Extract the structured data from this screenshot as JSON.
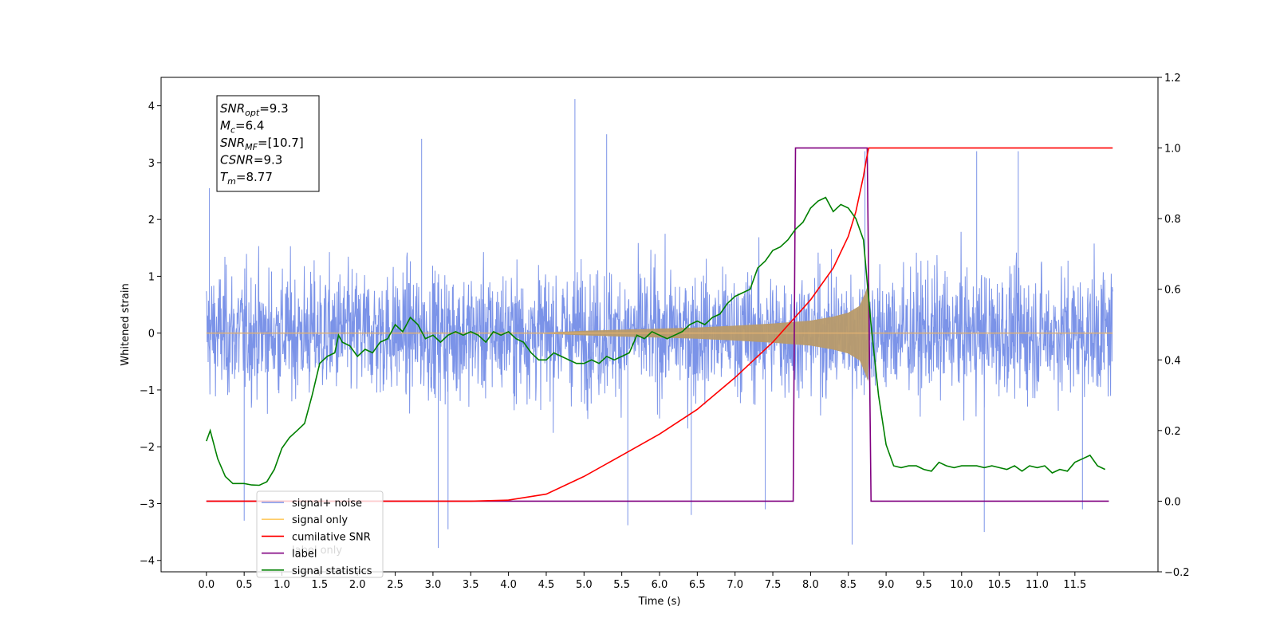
{
  "chart_data": {
    "type": "line",
    "xlabel": "Time (s)",
    "ylabel": "Whitened strain",
    "xlim": [
      -0.6,
      12.6
    ],
    "ylim_left": [
      -4.2,
      4.5
    ],
    "ylim_right": [
      -0.2,
      1.2
    ],
    "x_ticks": [
      0.0,
      0.5,
      1.0,
      1.5,
      2.0,
      2.5,
      3.0,
      3.5,
      4.0,
      4.5,
      5.0,
      5.5,
      6.0,
      6.5,
      7.0,
      7.5,
      8.0,
      8.5,
      9.0,
      9.5,
      10.0,
      10.5,
      11.0,
      11.5
    ],
    "x_tick_labels": [
      "0.0",
      "0.5",
      "1.0",
      "1.5",
      "2.0",
      "2.5",
      "3.0",
      "3.5",
      "4.0",
      "4.5",
      "5.0",
      "5.5",
      "6.0",
      "6.5",
      "7.0",
      "7.5",
      "8.0",
      "8.5",
      "9.0",
      "9.5",
      "10.0",
      "10.5",
      "11.0",
      "11.5"
    ],
    "y_left_ticks": [
      -4,
      -3,
      -2,
      -1,
      0,
      1,
      2,
      3,
      4
    ],
    "y_left_tick_labels": [
      "−4",
      "−3",
      "−2",
      "−1",
      "0",
      "1",
      "2",
      "3",
      "4"
    ],
    "y_right_ticks": [
      -0.2,
      0.0,
      0.2,
      0.4,
      0.6,
      0.8,
      1.0,
      1.2
    ],
    "y_right_tick_labels": [
      "−0.2",
      "0.0",
      "0.2",
      "0.4",
      "0.6",
      "0.8",
      "1.0",
      "1.2"
    ],
    "grid": false,
    "legend_position": "lower-left",
    "legend": [
      {
        "label": "signal+ noise",
        "color": "#7b93e8"
      },
      {
        "label": "signal only",
        "color": "#ffcc66"
      },
      {
        "label": "cumilative SNR",
        "color": "#ff0000"
      },
      {
        "label": "label",
        "color": "#800080"
      },
      {
        "label": "signal statistics",
        "color": "#008000"
      }
    ],
    "hidden_legend_text": "label only",
    "annotation": [
      {
        "main": "SNR",
        "sub": "opt",
        "rest": "=9.3"
      },
      {
        "main": "M",
        "sub": "c",
        "rest": "=6.4"
      },
      {
        "main": "SNR",
        "sub": "MF",
        "rest": "=[10.7]"
      },
      {
        "main": "CSNR",
        "sub": "",
        "rest": "=9.3"
      },
      {
        "main": "T",
        "sub": "m",
        "rest": "=8.77"
      }
    ],
    "series": [
      {
        "name": "signal+ noise",
        "axis": "left",
        "color": "#7b93e8",
        "style": "dense noise between about -2.5 and 2.5 whitened strain, occasional spikes up to 4.1 and down to -3.7",
        "t_range": [
          0.0,
          12.0
        ],
        "typical_amplitude": 1.9,
        "spikes": [
          [
            0.04,
            2.55
          ],
          [
            0.5,
            -3.3
          ],
          [
            2.85,
            3.42
          ],
          [
            3.07,
            -3.78
          ],
          [
            3.2,
            -3.45
          ],
          [
            4.88,
            4.12
          ],
          [
            5.3,
            3.5
          ],
          [
            5.58,
            -3.38
          ],
          [
            6.42,
            -3.2
          ],
          [
            7.4,
            -3.1
          ],
          [
            8.55,
            -3.72
          ],
          [
            8.72,
            3.2
          ],
          [
            10.2,
            3.2
          ],
          [
            10.3,
            -3.5
          ],
          [
            10.75,
            3.2
          ],
          [
            11.6,
            -3.1
          ]
        ]
      },
      {
        "name": "signal only",
        "axis": "left",
        "color": "#ffcc66",
        "style": "chirp envelope, flat before 4.3 s, growing to peak near 8.77 s then ending",
        "envelope": [
          [
            0.0,
            0.0
          ],
          [
            4.3,
            0.0
          ],
          [
            5.0,
            0.04
          ],
          [
            5.5,
            0.06
          ],
          [
            6.0,
            0.08
          ],
          [
            6.5,
            0.1
          ],
          [
            7.0,
            0.13
          ],
          [
            7.5,
            0.17
          ],
          [
            8.0,
            0.22
          ],
          [
            8.3,
            0.29
          ],
          [
            8.5,
            0.36
          ],
          [
            8.65,
            0.48
          ],
          [
            8.72,
            0.7
          ],
          [
            8.76,
            0.85
          ],
          [
            8.78,
            0.0
          ],
          [
            12.0,
            0.0
          ]
        ]
      },
      {
        "name": "cumilative SNR",
        "axis": "right",
        "color": "#ff0000",
        "x": [
          0.0,
          3.5,
          4.0,
          4.5,
          5.0,
          5.5,
          6.0,
          6.5,
          7.0,
          7.5,
          8.0,
          8.3,
          8.5,
          8.6,
          8.7,
          8.74,
          8.77,
          12.0
        ],
        "y": [
          0.0,
          0.0,
          0.003,
          0.02,
          0.07,
          0.13,
          0.19,
          0.26,
          0.35,
          0.45,
          0.57,
          0.66,
          0.75,
          0.82,
          0.92,
          0.97,
          1.0,
          1.0
        ]
      },
      {
        "name": "label",
        "axis": "right",
        "color": "#800080",
        "x": [
          0.0,
          7.77,
          7.8,
          8.75,
          8.8,
          11.95
        ],
        "y": [
          0.0,
          0.0,
          1.0,
          1.0,
          0.0,
          0.0
        ]
      },
      {
        "name": "signal statistics",
        "axis": "right",
        "color": "#008000",
        "x": [
          0.0,
          0.05,
          0.15,
          0.25,
          0.35,
          0.5,
          0.6,
          0.7,
          0.8,
          0.9,
          1.0,
          1.1,
          1.2,
          1.3,
          1.4,
          1.5,
          1.6,
          1.7,
          1.75,
          1.8,
          1.9,
          2.0,
          2.1,
          2.2,
          2.3,
          2.4,
          2.5,
          2.6,
          2.7,
          2.8,
          2.9,
          3.0,
          3.1,
          3.2,
          3.3,
          3.4,
          3.5,
          3.6,
          3.7,
          3.8,
          3.9,
          4.0,
          4.1,
          4.2,
          4.3,
          4.4,
          4.5,
          4.6,
          4.7,
          4.8,
          4.9,
          5.0,
          5.1,
          5.2,
          5.3,
          5.4,
          5.5,
          5.6,
          5.7,
          5.8,
          5.9,
          6.0,
          6.1,
          6.2,
          6.3,
          6.4,
          6.5,
          6.6,
          6.7,
          6.8,
          6.9,
          7.0,
          7.1,
          7.2,
          7.3,
          7.4,
          7.5,
          7.6,
          7.7,
          7.8,
          7.9,
          8.0,
          8.1,
          8.2,
          8.3,
          8.4,
          8.5,
          8.6,
          8.7,
          8.75,
          8.8,
          8.9,
          9.0,
          9.1,
          9.2,
          9.3,
          9.4,
          9.5,
          9.6,
          9.7,
          9.8,
          9.9,
          10.0,
          10.1,
          10.2,
          10.3,
          10.4,
          10.5,
          10.6,
          10.7,
          10.8,
          10.9,
          11.0,
          11.1,
          11.2,
          11.3,
          11.4,
          11.5,
          11.6,
          11.7,
          11.8,
          11.9
        ],
        "y": [
          0.17,
          0.2,
          0.12,
          0.07,
          0.05,
          0.05,
          0.046,
          0.045,
          0.055,
          0.09,
          0.15,
          0.18,
          0.2,
          0.22,
          0.3,
          0.39,
          0.41,
          0.42,
          0.47,
          0.45,
          0.44,
          0.41,
          0.43,
          0.42,
          0.45,
          0.46,
          0.5,
          0.48,
          0.52,
          0.5,
          0.46,
          0.47,
          0.45,
          0.47,
          0.48,
          0.47,
          0.48,
          0.47,
          0.45,
          0.48,
          0.47,
          0.48,
          0.46,
          0.45,
          0.42,
          0.4,
          0.4,
          0.42,
          0.41,
          0.4,
          0.39,
          0.39,
          0.4,
          0.39,
          0.41,
          0.4,
          0.41,
          0.42,
          0.47,
          0.46,
          0.48,
          0.47,
          0.46,
          0.47,
          0.48,
          0.5,
          0.51,
          0.5,
          0.52,
          0.53,
          0.56,
          0.58,
          0.59,
          0.6,
          0.66,
          0.68,
          0.71,
          0.72,
          0.74,
          0.77,
          0.79,
          0.83,
          0.85,
          0.86,
          0.82,
          0.84,
          0.83,
          0.8,
          0.74,
          0.62,
          0.5,
          0.3,
          0.16,
          0.1,
          0.095,
          0.1,
          0.1,
          0.09,
          0.085,
          0.11,
          0.1,
          0.095,
          0.1,
          0.1,
          0.1,
          0.095,
          0.1,
          0.095,
          0.09,
          0.1,
          0.085,
          0.1,
          0.095,
          0.1,
          0.08,
          0.09,
          0.085,
          0.11,
          0.12,
          0.13,
          0.1,
          0.09
        ]
      }
    ]
  }
}
